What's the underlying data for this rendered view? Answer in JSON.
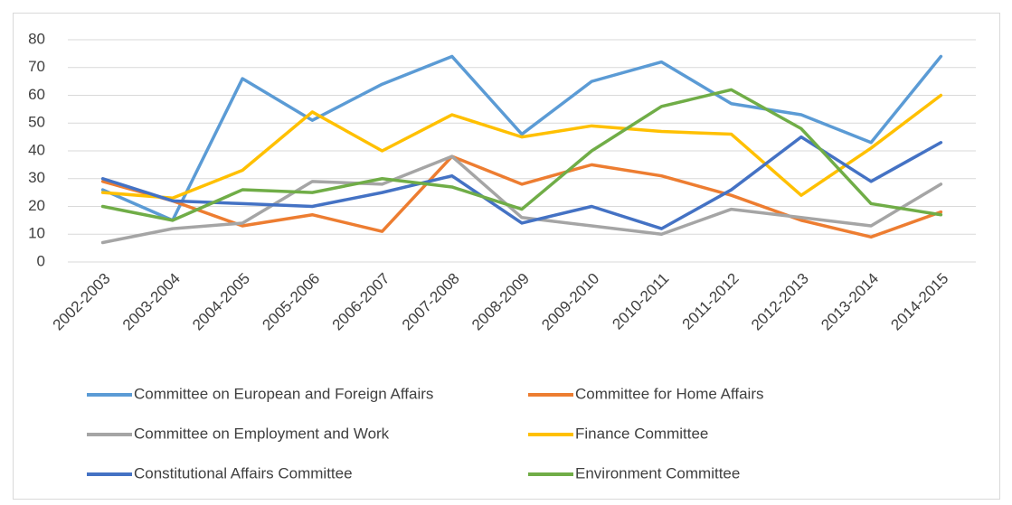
{
  "chart_data": {
    "type": "line",
    "categories": [
      "2002-2003",
      "2003-2004",
      "2004-2005",
      "2005-2006",
      "2006-2007",
      "2007-2008",
      "2008-2009",
      "2009-2010",
      "2010-2011",
      "2011-2012",
      "2012-2013",
      "2013-2014",
      "2014-2015"
    ],
    "series": [
      {
        "name": "Committee on European and Foreign Affairs",
        "color": "#5B9BD5",
        "values": [
          26,
          15,
          66,
          51,
          64,
          74,
          46,
          65,
          72,
          57,
          53,
          43,
          74
        ]
      },
      {
        "name": "Committee for Home Affairs",
        "color": "#ED7D31",
        "values": [
          29,
          22,
          13,
          17,
          11,
          38,
          28,
          35,
          31,
          24,
          15,
          9,
          18
        ]
      },
      {
        "name": "Committee on Employment and Work",
        "color": "#A5A5A5",
        "values": [
          7,
          12,
          14,
          29,
          28,
          38,
          16,
          13,
          10,
          19,
          16,
          13,
          28
        ]
      },
      {
        "name": "Finance Committee",
        "color": "#FFC000",
        "values": [
          25,
          23,
          33,
          54,
          40,
          53,
          45,
          49,
          47,
          46,
          24,
          41,
          60
        ]
      },
      {
        "name": "Constitutional Affairs Committee",
        "color": "#4472C4",
        "values": [
          30,
          22,
          21,
          20,
          25,
          31,
          14,
          20,
          12,
          26,
          45,
          29,
          43
        ]
      },
      {
        "name": "Environment Committee",
        "color": "#70AD47",
        "values": [
          20,
          15,
          26,
          25,
          30,
          27,
          19,
          40,
          56,
          62,
          48,
          21,
          17
        ]
      }
    ],
    "ylim": [
      0,
      80
    ],
    "yticks": [
      0,
      10,
      20,
      30,
      40,
      50,
      60,
      70,
      80
    ],
    "grid": true,
    "legend": "bottom"
  }
}
